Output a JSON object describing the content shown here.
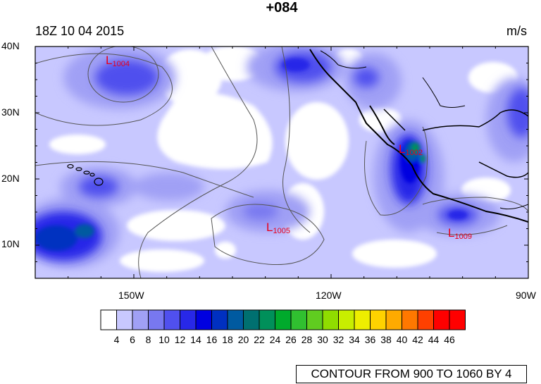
{
  "header": {
    "title": "+084",
    "valid_time": "18Z 10 04 2015",
    "units": "m/s"
  },
  "map": {
    "lat_labels": [
      "40N",
      "30N",
      "20N",
      "10N"
    ],
    "lon_labels": [
      "150W",
      "120W",
      "90W"
    ],
    "lows": [
      {
        "letter": "L",
        "value": "1004",
        "lon": -160,
        "lat": 37.5
      },
      {
        "letter": "L",
        "value": "1005",
        "lon": -131,
        "lat": 12.5
      },
      {
        "letter": "L",
        "value": "1009",
        "lon": -101,
        "lat": 11.2
      },
      {
        "letter": "L",
        "value": "1002",
        "lon": -106,
        "lat": 23.8
      }
    ],
    "colors": {
      "land_line": "#000000",
      "contour_line": "#555555",
      "low_label": "#e8001c"
    }
  },
  "colorbar": {
    "labels": [
      "4",
      "6",
      "8",
      "10",
      "12",
      "14",
      "16",
      "18",
      "20",
      "22",
      "24",
      "26",
      "28",
      "30",
      "32",
      "34",
      "36",
      "38",
      "40",
      "42",
      "44",
      "46"
    ],
    "colors": [
      "#ffffff",
      "#c8c8ff",
      "#a0a0f5",
      "#7878f0",
      "#5050ee",
      "#2828e8",
      "#0000e0",
      "#0030c0",
      "#005aa0",
      "#007070",
      "#00905a",
      "#00aa2c",
      "#30c030",
      "#60cc20",
      "#90dd00",
      "#c8ee00",
      "#eeee00",
      "#ffd200",
      "#ffaa00",
      "#ff7800",
      "#ff4000",
      "#ff0000",
      "#ff0000"
    ]
  },
  "footer": {
    "contour_info": "CONTOUR FROM 900 TO 1060 BY 4"
  }
}
